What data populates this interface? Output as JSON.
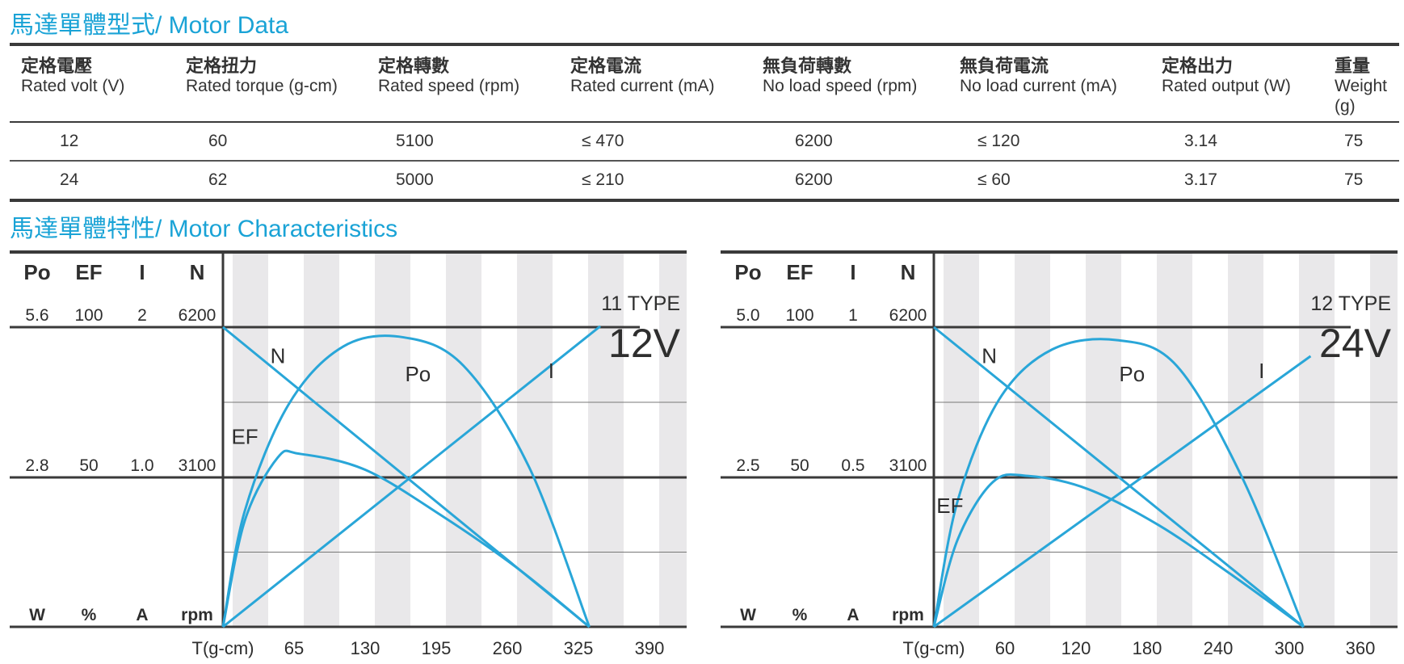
{
  "section1_title": "馬達單體型式/ Motor Data",
  "section2_title": "馬達單體特性/ Motor Characteristics",
  "table": {
    "headers": [
      {
        "zh": "定格電壓",
        "en": "Rated volt (V)"
      },
      {
        "zh": "定格扭力",
        "en": "Rated torque (g-cm)"
      },
      {
        "zh": "定格轉數",
        "en": "Rated speed (rpm)"
      },
      {
        "zh": "定格電流",
        "en": "Rated current (mA)"
      },
      {
        "zh": "無負荷轉數",
        "en": "No load speed (rpm)"
      },
      {
        "zh": "無負荷電流",
        "en": "No load current (mA)"
      },
      {
        "zh": "定格出力",
        "en": "Rated output (W)"
      },
      {
        "zh": "重量",
        "en": "Weight (g)"
      }
    ],
    "rows": [
      [
        "12",
        "60",
        "5100",
        "≤ 470",
        "6200",
        "≤ 120",
        "3.14",
        "75"
      ],
      [
        "24",
        "62",
        "5000",
        "≤ 210",
        "6200",
        "≤ 60",
        "3.17",
        "75"
      ]
    ]
  },
  "colors": {
    "accent": "#1aa3d6",
    "curve": "#29a6d8",
    "text": "#2e2e2e",
    "band": "#e9e8ea",
    "rule": "#3a3a3a"
  },
  "chart_data": [
    {
      "type": "line",
      "type_label": "11 TYPE",
      "voltage_label": "12V",
      "axis_symbols": [
        "Po",
        "EF",
        "I",
        "N"
      ],
      "axis_units": [
        "W",
        "%",
        "A",
        "rpm"
      ],
      "axis_top_values": [
        "5.6",
        "100",
        "2",
        "6200"
      ],
      "axis_mid_values": [
        "2.8",
        "50",
        "1.0",
        "3100"
      ],
      "x_axis_label": "T(g-cm)",
      "x_ticks": [
        "65",
        "130",
        "195",
        "260",
        "325",
        "390"
      ],
      "x_step": 65,
      "ylim_rpm": [
        0,
        6200
      ],
      "series": [
        {
          "name": "N",
          "x": [
            0,
            335
          ],
          "y": [
            6200,
            0
          ]
        },
        {
          "name": "I",
          "x": [
            0,
            345
          ],
          "y": [
            0,
            6220
          ]
        },
        {
          "name": "Po",
          "x": [
            0,
            20,
            60,
            110,
            165,
            220,
            280,
            335
          ],
          "y": [
            0,
            2400,
            4600,
            5800,
            5990,
            5400,
            3300,
            0
          ]
        },
        {
          "name": "EF",
          "x": [
            0,
            20,
            50,
            70,
            130,
            200,
            270,
            335
          ],
          "y": [
            0,
            2200,
            3500,
            3580,
            3250,
            2300,
            1200,
            0
          ]
        }
      ],
      "curve_labels": [
        "N",
        "Po",
        "I",
        "EF"
      ]
    },
    {
      "type": "line",
      "type_label": "12 TYPE",
      "voltage_label": "24V",
      "axis_symbols": [
        "Po",
        "EF",
        "I",
        "N"
      ],
      "axis_units": [
        "W",
        "%",
        "A",
        "rpm"
      ],
      "axis_top_values": [
        "5.0",
        "100",
        "1",
        "6200"
      ],
      "axis_mid_values": [
        "2.5",
        "50",
        "0.5",
        "3100"
      ],
      "x_axis_label": "T(g-cm)",
      "x_ticks": [
        "60",
        "120",
        "180",
        "240",
        "300",
        "360"
      ],
      "x_step": 60,
      "ylim_rpm": [
        0,
        6200
      ],
      "series": [
        {
          "name": "N",
          "x": [
            0,
            312
          ],
          "y": [
            6200,
            0
          ]
        },
        {
          "name": "I",
          "x": [
            0,
            318
          ],
          "y": [
            0,
            5600
          ]
        },
        {
          "name": "Po",
          "x": [
            0,
            20,
            55,
            100,
            155,
            205,
            260,
            312
          ],
          "y": [
            0,
            2600,
            4700,
            5740,
            5930,
            5400,
            3100,
            0
          ]
        },
        {
          "name": "EF",
          "x": [
            0,
            20,
            50,
            80,
            130,
            190,
            250,
            312
          ],
          "y": [
            0,
            1800,
            3000,
            3120,
            2850,
            2100,
            1100,
            0
          ]
        }
      ],
      "curve_labels": [
        "N",
        "Po",
        "I",
        "EF"
      ]
    }
  ]
}
